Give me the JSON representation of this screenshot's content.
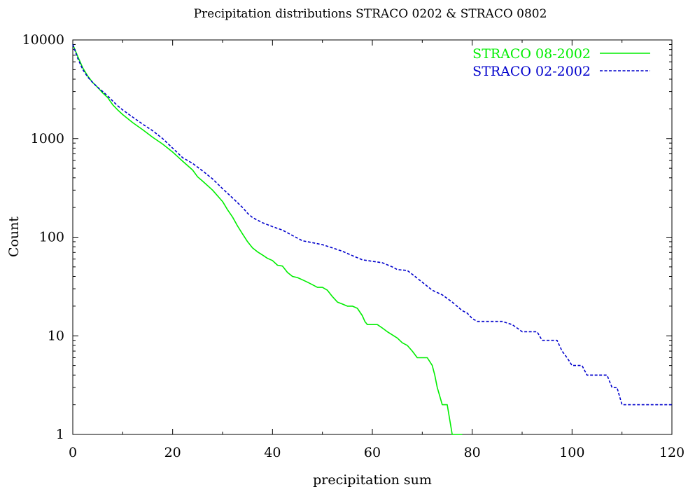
{
  "chart_data": {
    "type": "line",
    "title": "Precipitation distributions STRACO 0202 & STRACO 0802",
    "xlabel": "precipitation sum",
    "ylabel": "Count",
    "xlim": [
      0,
      120
    ],
    "ylim": [
      1,
      10000
    ],
    "y_scale": "log",
    "grid": false,
    "legend_position": "top-right",
    "x_ticks": [
      0,
      20,
      40,
      60,
      80,
      100,
      120
    ],
    "x_tick_labels": [
      "0",
      "20",
      "40",
      "60",
      "80",
      "100",
      "120"
    ],
    "y_ticks": [
      1,
      10,
      100,
      1000,
      10000
    ],
    "y_tick_labels": [
      "1",
      "10",
      "100",
      "1000",
      "10000"
    ],
    "series": [
      {
        "name": "STRACO 08-2002",
        "color": "#00ee00",
        "style": "solid",
        "points": [
          [
            0,
            9000
          ],
          [
            1,
            6800
          ],
          [
            2,
            5200
          ],
          [
            3,
            4300
          ],
          [
            4,
            3700
          ],
          [
            5,
            3300
          ],
          [
            6,
            2900
          ],
          [
            7,
            2600
          ],
          [
            8,
            2200
          ],
          [
            9,
            1950
          ],
          [
            10,
            1750
          ],
          [
            12,
            1450
          ],
          [
            14,
            1230
          ],
          [
            16,
            1030
          ],
          [
            18,
            880
          ],
          [
            20,
            730
          ],
          [
            22,
            590
          ],
          [
            24,
            480
          ],
          [
            25,
            410
          ],
          [
            26,
            370
          ],
          [
            28,
            300
          ],
          [
            30,
            230
          ],
          [
            31,
            190
          ],
          [
            32,
            160
          ],
          [
            33,
            130
          ],
          [
            34,
            108
          ],
          [
            35,
            90
          ],
          [
            36,
            78
          ],
          [
            37,
            71
          ],
          [
            38,
            66
          ],
          [
            39,
            61
          ],
          [
            40,
            58
          ],
          [
            41,
            52
          ],
          [
            42,
            51
          ],
          [
            43,
            44
          ],
          [
            44,
            40
          ],
          [
            45,
            39
          ],
          [
            46,
            37
          ],
          [
            47,
            35
          ],
          [
            48,
            33
          ],
          [
            49,
            31
          ],
          [
            50,
            31
          ],
          [
            51,
            29
          ],
          [
            52,
            25
          ],
          [
            53,
            22
          ],
          [
            54,
            21
          ],
          [
            55,
            20
          ],
          [
            56,
            20
          ],
          [
            57,
            19
          ],
          [
            58,
            16
          ],
          [
            58.5,
            14
          ],
          [
            59,
            13
          ],
          [
            61,
            13
          ],
          [
            62,
            12
          ],
          [
            63,
            11
          ],
          [
            65,
            9.5
          ],
          [
            66,
            8.5
          ],
          [
            67,
            8
          ],
          [
            68,
            7
          ],
          [
            69,
            6
          ],
          [
            70,
            6
          ],
          [
            71,
            6
          ],
          [
            72,
            5
          ],
          [
            72.5,
            4
          ],
          [
            73,
            3
          ],
          [
            74,
            2
          ],
          [
            75,
            2
          ],
          [
            76,
            1
          ],
          [
            78,
            1
          ]
        ]
      },
      {
        "name": "STRACO 02-2002",
        "color": "#0000cc",
        "style": "dashed",
        "points": [
          [
            0,
            9000
          ],
          [
            1,
            6500
          ],
          [
            2,
            5000
          ],
          [
            3,
            4200
          ],
          [
            4,
            3700
          ],
          [
            5,
            3300
          ],
          [
            6,
            3000
          ],
          [
            7,
            2700
          ],
          [
            8,
            2400
          ],
          [
            9,
            2150
          ],
          [
            10,
            1950
          ],
          [
            12,
            1650
          ],
          [
            14,
            1400
          ],
          [
            16,
            1200
          ],
          [
            18,
            1000
          ],
          [
            20,
            800
          ],
          [
            22,
            640
          ],
          [
            24,
            560
          ],
          [
            26,
            470
          ],
          [
            28,
            390
          ],
          [
            30,
            310
          ],
          [
            32,
            250
          ],
          [
            34,
            200
          ],
          [
            35,
            175
          ],
          [
            36,
            158
          ],
          [
            38,
            140
          ],
          [
            40,
            128
          ],
          [
            42,
            118
          ],
          [
            44,
            104
          ],
          [
            46,
            92
          ],
          [
            48,
            88
          ],
          [
            50,
            84
          ],
          [
            52,
            78
          ],
          [
            54,
            72
          ],
          [
            56,
            65
          ],
          [
            58,
            59
          ],
          [
            60,
            57
          ],
          [
            62,
            55
          ],
          [
            64,
            50
          ],
          [
            65,
            47
          ],
          [
            67,
            46
          ],
          [
            68,
            42
          ],
          [
            70,
            35
          ],
          [
            72,
            29
          ],
          [
            74,
            26
          ],
          [
            76,
            22
          ],
          [
            78,
            18
          ],
          [
            79,
            17
          ],
          [
            80,
            15
          ],
          [
            81,
            14
          ],
          [
            86,
            14
          ],
          [
            88,
            13
          ],
          [
            89,
            12
          ],
          [
            90,
            11
          ],
          [
            93,
            11
          ],
          [
            94,
            9
          ],
          [
            97,
            9
          ],
          [
            98,
            7
          ],
          [
            99,
            6
          ],
          [
            100,
            5
          ],
          [
            102,
            5
          ],
          [
            103,
            4
          ],
          [
            107,
            4
          ],
          [
            108,
            3
          ],
          [
            109,
            3
          ],
          [
            110,
            2
          ],
          [
            120,
            2
          ]
        ]
      }
    ]
  }
}
